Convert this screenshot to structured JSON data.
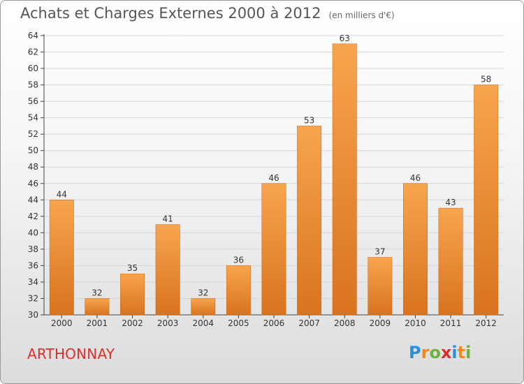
{
  "header": {
    "title": "Achats et Charges Externes 2000 à 2012",
    "unit": "(en milliers d'€)"
  },
  "commune": "ARTHONNAY",
  "logo": {
    "letters": [
      "P",
      "r",
      "o",
      "x",
      "i",
      "t",
      "i"
    ],
    "colors": [
      "#2a8fd8",
      "#f08a1c",
      "#6cb33e",
      "#d9302e",
      "#2a8fd8",
      "#f08a1c",
      "#6cb33e"
    ]
  },
  "colors": {
    "bar_top": "#f7a54e",
    "bar_bottom": "#d9731e",
    "axis": "#444444",
    "grid": "#d6d6d6"
  },
  "chart_data": {
    "type": "bar",
    "title": "Achats et Charges Externes 2000 à 2012",
    "xlabel": "",
    "ylabel": "",
    "categories": [
      "2000",
      "2001",
      "2002",
      "2003",
      "2004",
      "2005",
      "2006",
      "2007",
      "2008",
      "2009",
      "2010",
      "2011",
      "2012"
    ],
    "values": [
      44,
      32,
      35,
      41,
      32,
      36,
      46,
      53,
      63,
      37,
      46,
      43,
      58
    ],
    "ylim": [
      30,
      64
    ],
    "yticks": [
      30,
      32,
      34,
      36,
      38,
      40,
      42,
      44,
      46,
      48,
      50,
      52,
      54,
      56,
      58,
      60,
      62,
      64
    ],
    "grid": true,
    "legend": "none"
  }
}
